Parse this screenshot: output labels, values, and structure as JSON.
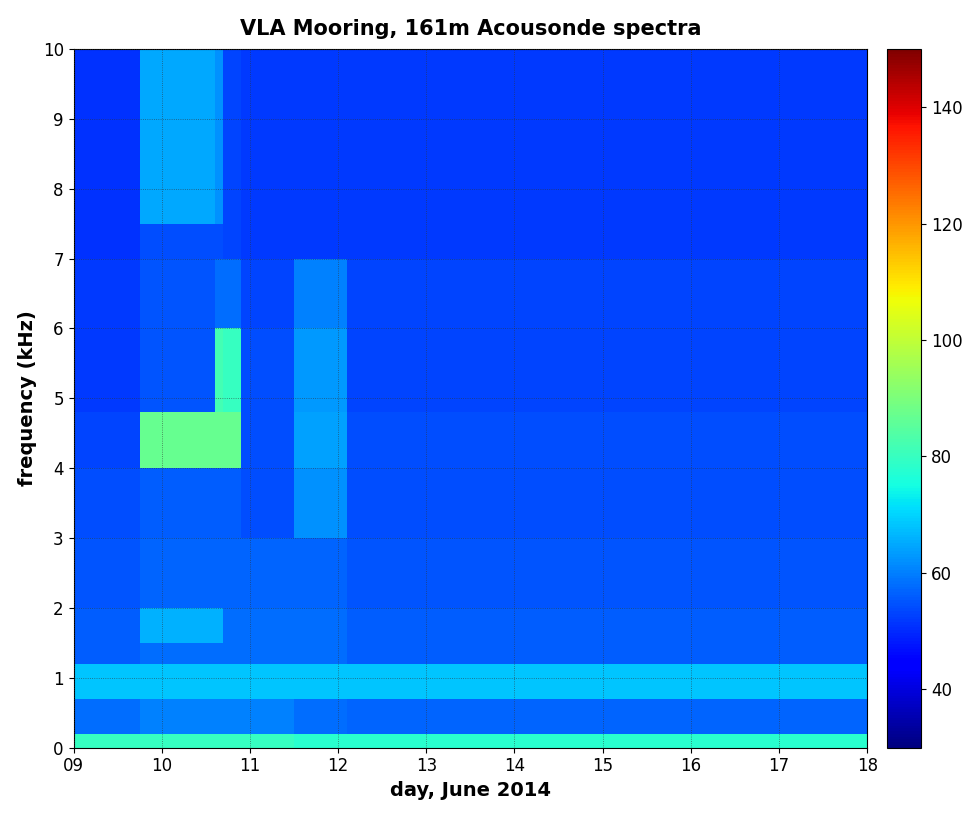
{
  "chart_data": {
    "type": "heatmap",
    "title": "VLA Mooring, 161m Acousonde spectra",
    "x_label": "day, June 2014",
    "y_label": "frequency (kHz)",
    "x_edges": [
      9,
      9.75,
      10.6,
      10.7,
      10.9,
      11.5,
      12.1,
      18
    ],
    "y_edges": [
      0,
      0.2,
      0.7,
      1.2,
      1.5,
      2,
      3,
      4,
      4.8,
      6,
      7,
      7.5,
      10
    ],
    "cells": [
      [
        80,
        80,
        80,
        80,
        80,
        78,
        78
      ],
      [
        58,
        60,
        60,
        60,
        60,
        58,
        57
      ],
      [
        68,
        68,
        68,
        68,
        68,
        68,
        68
      ],
      [
        56,
        58,
        58,
        58,
        58,
        58,
        56
      ],
      [
        56,
        66,
        66,
        58,
        58,
        58,
        56
      ],
      [
        55,
        57,
        57,
        57,
        57,
        57,
        55
      ],
      [
        54,
        56,
        56,
        56,
        54,
        62,
        54
      ],
      [
        53,
        87,
        87,
        87,
        54,
        64,
        54
      ],
      [
        52,
        55,
        82,
        80,
        54,
        63,
        53
      ],
      [
        52,
        55,
        58,
        58,
        53,
        60,
        53
      ],
      [
        51,
        54,
        54,
        53,
        52,
        52,
        52
      ],
      [
        51,
        65,
        62,
        53,
        52,
        52,
        52
      ]
    ],
    "color_range": [
      30,
      150
    ],
    "color_ticks": [
      40,
      60,
      80,
      100,
      120,
      140
    ],
    "xlim": [
      9,
      18
    ],
    "ylim": [
      0,
      10
    ],
    "xticks": [
      {
        "value": 9,
        "label": "09"
      },
      10,
      11,
      12,
      13,
      14,
      15,
      16,
      17,
      18
    ],
    "yticks": [
      0,
      1,
      2,
      3,
      4,
      5,
      6,
      7,
      8,
      9,
      10
    ],
    "grid": true
  }
}
